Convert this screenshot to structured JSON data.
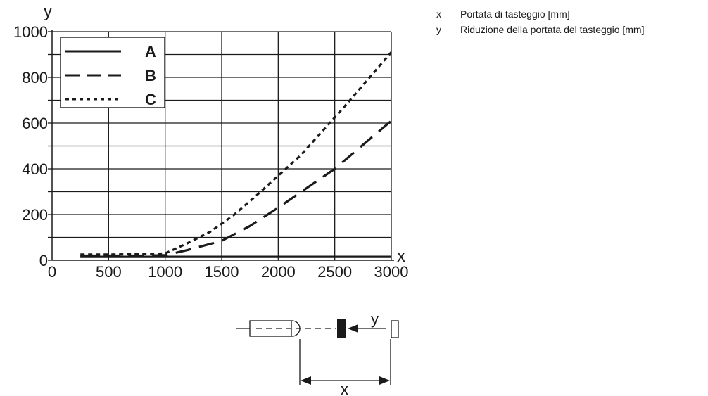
{
  "chart_data": {
    "type": "line",
    "xlabel": "x",
    "ylabel": "y",
    "xlim": [
      0,
      3000
    ],
    "ylim": [
      0,
      1000
    ],
    "x_ticks": [
      0,
      500,
      1000,
      1500,
      2000,
      2500,
      3000
    ],
    "y_ticks": [
      0,
      200,
      400,
      600,
      800,
      1000
    ],
    "grid": true,
    "legend_position": "top-left",
    "series": [
      {
        "name": "A",
        "style": "solid",
        "x": [
          250,
          500,
          1000,
          1500,
          2000,
          2500,
          3000
        ],
        "y": [
          15,
          15,
          15,
          15,
          15,
          15,
          15
        ]
      },
      {
        "name": "B",
        "style": "dashed",
        "x": [
          250,
          500,
          800,
          1000,
          1200,
          1500,
          1750,
          2000,
          2250,
          2500,
          2750,
          3000
        ],
        "y": [
          20,
          20,
          20,
          22,
          45,
          85,
          150,
          230,
          315,
          400,
          505,
          610
        ]
      },
      {
        "name": "C",
        "style": "dotted",
        "x": [
          250,
          500,
          800,
          1000,
          1200,
          1400,
          1600,
          1800,
          2000,
          2200,
          2400,
          2600,
          2800,
          3000
        ],
        "y": [
          25,
          25,
          27,
          30,
          75,
          125,
          195,
          280,
          370,
          460,
          570,
          680,
          795,
          910
        ]
      }
    ]
  },
  "side_legend": [
    {
      "key": "x",
      "text": "Portata di tasteggio [mm]"
    },
    {
      "key": "y",
      "text": "Riduzione della portata del tasteggio [mm]"
    }
  ],
  "diagram": {
    "x_label": "x",
    "y_label": "y"
  }
}
